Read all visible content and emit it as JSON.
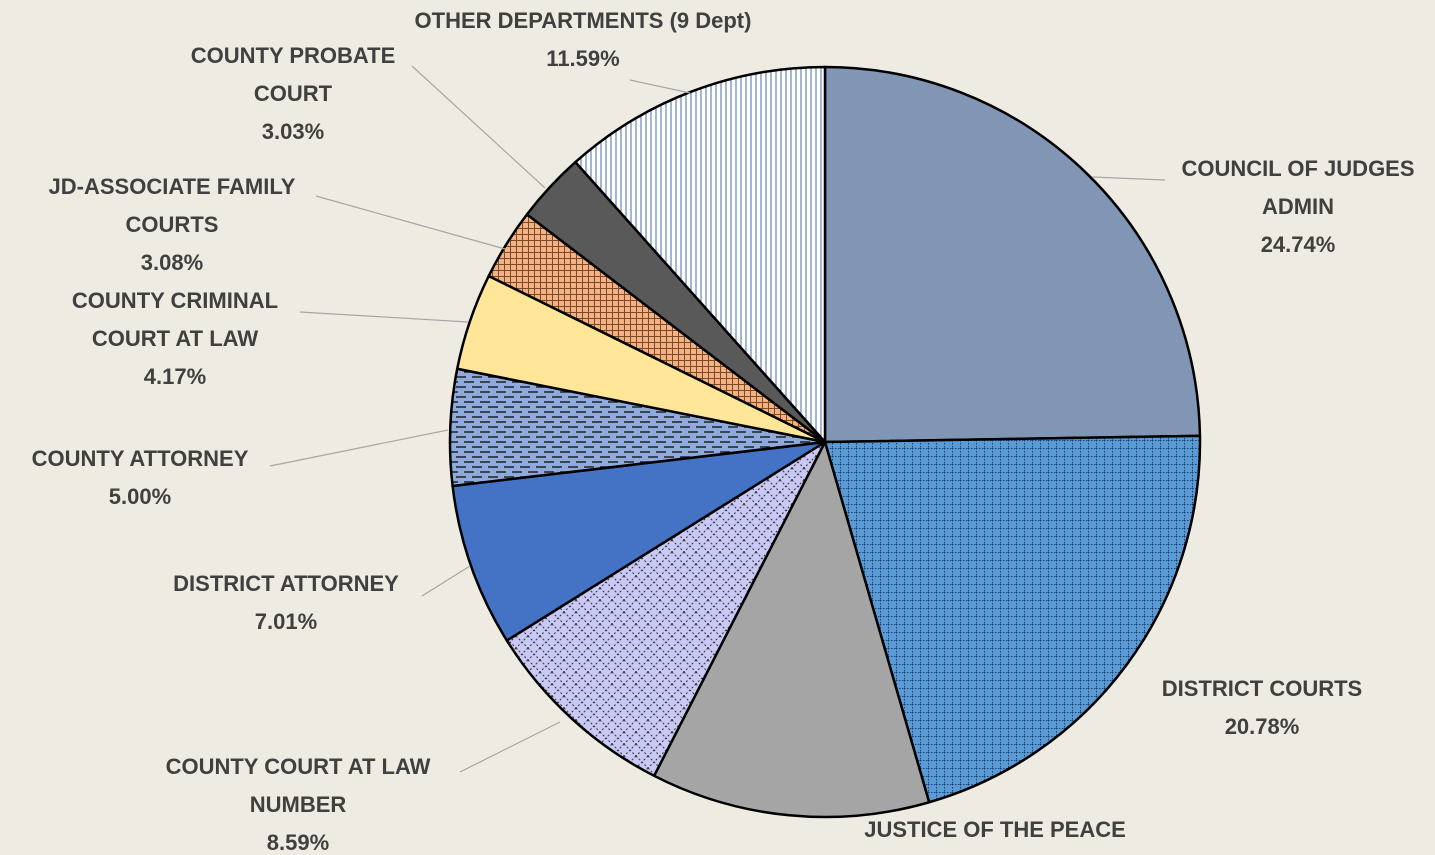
{
  "chart_data": {
    "type": "pie",
    "categories": [
      "COUNCIL OF JUDGES\nADMIN",
      "DISTRICT COURTS",
      "JUSTICE OF THE PEACE",
      "COUNTY COURT AT LAW\nNUMBER",
      "DISTRICT ATTORNEY",
      "COUNTY ATTORNEY",
      "COUNTY CRIMINAL\nCOURT AT LAW",
      "JD-ASSOCIATE FAMILY\nCOURTS",
      "COUNTY PROBATE\nCOURT",
      "OTHER DEPARTMENTS (9 Dept)"
    ],
    "values": [
      24.74,
      20.78,
      12.01,
      8.59,
      7.01,
      5.0,
      4.17,
      3.08,
      3.03,
      11.59
    ],
    "value_labels": [
      "24.74%",
      "20.78%",
      null,
      "8.59%",
      "7.01%",
      "5.00%",
      "4.17%",
      "3.08%",
      "3.03%",
      "11.59%"
    ],
    "colors": [
      "#8096b4",
      "#5b9bd5",
      "#a5a5a5",
      "#c9c9f5",
      "#4472c4",
      "#8faadc",
      "#ffe699",
      "#f4b183",
      "#595959",
      "#ffffff"
    ],
    "patterns": [
      "solid",
      "dotted-grid",
      "solid",
      "diagonal-grid",
      "solid",
      "dashed",
      "solid",
      "cross-hatch",
      "solid",
      "vertical"
    ]
  }
}
